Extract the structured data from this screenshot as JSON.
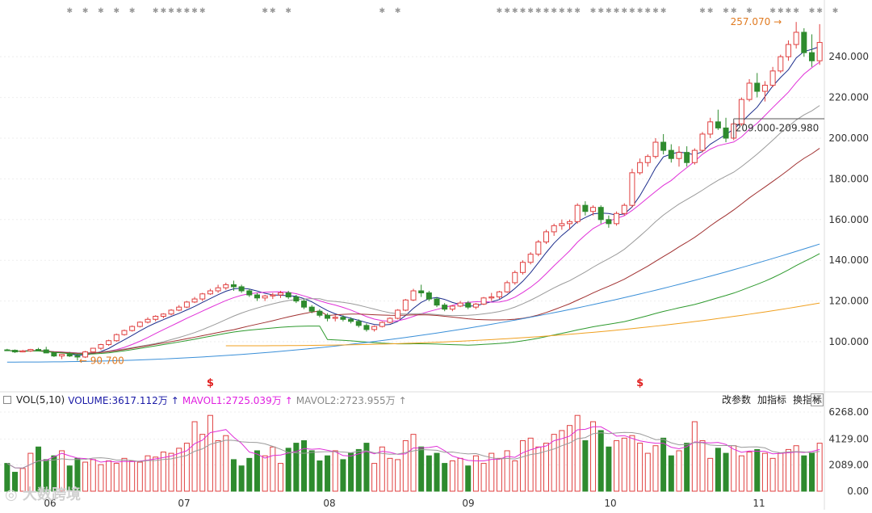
{
  "chart_data": {
    "type": "candlestick",
    "price_axis": {
      "ticks": [
        "240.000",
        "220.000",
        "200.000",
        "180.000",
        "160.000",
        "140.000",
        "120.000",
        "100.000"
      ]
    },
    "volume_axis": {
      "ticks": [
        "6268.00",
        "4129.00",
        "2089.00",
        "0.00"
      ]
    },
    "x_labels": [
      "06",
      "07",
      "08",
      "09",
      "10",
      "11"
    ],
    "annotations": {
      "high": "257.070",
      "low": "90.700",
      "range_box": "209.000-209.980",
      "dividend_marker": "$"
    },
    "volume_legend": {
      "indicator": "VOL(5,10)",
      "volume": "VOLUME:3617.112万",
      "mavol1": "MAVOL1:2725.039万",
      "mavol2": "MAVOL2:2723.955万"
    },
    "candles": [
      [
        96,
        96.5,
        95.5,
        95.8
      ],
      [
        95.8,
        96.2,
        94.5,
        95
      ],
      [
        95,
        96,
        94.8,
        95.5
      ],
      [
        95.5,
        96.5,
        95,
        96.2
      ],
      [
        96.2,
        97,
        95.5,
        96
      ],
      [
        96,
        97.5,
        95,
        94.5
      ],
      [
        94.5,
        95,
        92.5,
        93
      ],
      [
        93,
        94,
        91.5,
        93.8
      ],
      [
        93.8,
        95,
        92.5,
        93
      ],
      [
        93,
        94,
        90.7,
        92.5
      ],
      [
        92.5,
        95.5,
        92,
        95
      ],
      [
        95,
        97,
        94.5,
        96.8
      ],
      [
        96.8,
        99,
        96,
        98.6
      ],
      [
        98.6,
        101,
        98,
        100.5
      ],
      [
        100.5,
        104,
        100,
        103.5
      ],
      [
        103.5,
        106,
        103,
        105.5
      ],
      [
        105.5,
        108,
        105,
        107.5
      ],
      [
        107.5,
        110,
        107,
        109.6
      ],
      [
        109.6,
        112,
        109,
        111
      ],
      [
        111,
        113,
        110,
        112.5
      ],
      [
        112.5,
        114,
        111.5,
        113.6
      ],
      [
        113.6,
        116,
        113,
        115.5
      ],
      [
        115.5,
        118,
        115,
        117
      ],
      [
        117,
        120,
        116.5,
        119.5
      ],
      [
        119.5,
        122,
        119,
        121
      ],
      [
        121,
        124,
        120,
        123.5
      ],
      [
        123.5,
        126,
        123,
        125
      ],
      [
        125,
        128,
        124,
        126.5
      ],
      [
        126.5,
        129,
        125.5,
        128
      ],
      [
        128,
        130,
        125,
        127
      ],
      [
        127,
        128,
        124,
        125
      ],
      [
        125,
        126,
        122,
        123
      ],
      [
        123,
        124,
        120,
        121.5
      ],
      [
        121.5,
        123,
        120,
        122.5
      ],
      [
        122.5,
        124,
        121,
        123
      ],
      [
        123,
        125,
        121.5,
        124
      ],
      [
        124,
        125,
        121,
        122
      ],
      [
        122,
        123,
        119,
        120
      ],
      [
        120,
        121,
        116,
        117
      ],
      [
        117,
        118,
        114,
        115
      ],
      [
        115,
        116,
        112,
        113
      ],
      [
        113,
        114,
        110,
        111.5
      ],
      [
        111.5,
        113,
        110,
        112
      ],
      [
        112,
        113,
        110,
        111
      ],
      [
        111,
        112,
        109,
        110
      ],
      [
        110,
        111,
        107,
        108
      ],
      [
        108,
        109,
        105,
        106
      ],
      [
        106,
        108,
        105,
        107.5
      ],
      [
        107.5,
        110,
        107,
        109.5
      ],
      [
        109.5,
        112,
        109,
        111.5
      ],
      [
        111.5,
        116,
        111,
        115.5
      ],
      [
        115.5,
        121,
        115,
        120.5
      ],
      [
        120.5,
        126,
        120,
        125
      ],
      [
        125,
        128,
        122,
        124
      ],
      [
        124,
        125,
        120,
        121
      ],
      [
        121,
        122,
        117,
        118
      ],
      [
        118,
        119,
        115,
        116
      ],
      [
        116,
        118,
        115,
        117.5
      ],
      [
        117.5,
        120,
        117,
        119
      ],
      [
        119,
        120,
        116,
        117
      ],
      [
        117,
        119,
        116,
        118.5
      ],
      [
        118.5,
        122,
        118,
        121.5
      ],
      [
        121.5,
        124,
        120,
        122
      ],
      [
        122,
        125,
        121,
        124.5
      ],
      [
        124.5,
        130,
        124,
        129
      ],
      [
        129,
        135,
        128,
        134
      ],
      [
        134,
        140,
        133,
        139
      ],
      [
        139,
        144,
        138,
        143
      ],
      [
        143,
        150,
        142,
        149
      ],
      [
        149,
        155,
        148,
        154
      ],
      [
        154,
        158,
        152,
        157
      ],
      [
        157,
        160,
        155,
        158
      ],
      [
        158,
        160,
        155,
        159
      ],
      [
        159,
        168,
        158,
        167
      ],
      [
        167,
        169,
        162,
        164
      ],
      [
        164,
        167,
        162,
        166
      ],
      [
        166,
        167,
        158,
        160
      ],
      [
        160,
        162,
        156,
        158
      ],
      [
        158,
        164,
        157,
        163
      ],
      [
        163,
        168,
        162,
        167
      ],
      [
        167,
        185,
        166,
        183
      ],
      [
        183,
        190,
        182,
        188
      ],
      [
        188,
        192,
        186,
        191
      ],
      [
        191,
        200,
        190,
        198
      ],
      [
        198,
        202,
        192,
        194
      ],
      [
        194,
        197,
        188,
        190
      ],
      [
        190,
        196,
        186,
        193
      ],
      [
        193,
        196,
        186,
        188
      ],
      [
        188,
        195,
        187,
        194
      ],
      [
        194,
        203,
        193,
        202
      ],
      [
        202,
        210,
        200,
        208
      ],
      [
        208,
        214,
        204,
        205
      ],
      [
        205,
        210,
        198,
        200
      ],
      [
        200,
        208,
        199,
        207
      ],
      [
        207,
        220,
        206,
        219
      ],
      [
        219,
        229,
        218,
        227
      ],
      [
        227,
        232,
        220,
        223
      ],
      [
        223,
        228,
        218,
        226
      ],
      [
        226,
        235,
        225,
        233
      ],
      [
        233,
        241,
        232,
        240
      ],
      [
        240,
        248,
        238,
        246
      ],
      [
        246,
        257.07,
        244,
        252
      ],
      [
        252,
        254,
        240,
        242
      ],
      [
        242,
        251,
        235,
        238
      ],
      [
        238,
        256,
        236,
        247
      ]
    ],
    "volumes": [
      22,
      15,
      18,
      30,
      35,
      25,
      28,
      32,
      20,
      26,
      23,
      25,
      21,
      24,
      22,
      26,
      24,
      23,
      28,
      27,
      31,
      30,
      34,
      38,
      55,
      45,
      60,
      40,
      44,
      25,
      20,
      26,
      32,
      28,
      35,
      22,
      34,
      38,
      40,
      32,
      24,
      28,
      32,
      25,
      30,
      33,
      38,
      22,
      35,
      26,
      25,
      40,
      45,
      35,
      28,
      30,
      22,
      24,
      26,
      20,
      28,
      22,
      30,
      26,
      32,
      24,
      40,
      42,
      35,
      38,
      45,
      48,
      52,
      60,
      40,
      55,
      48,
      35,
      40,
      42,
      44,
      38,
      30,
      36,
      42,
      28,
      32,
      38,
      55,
      40,
      26,
      34,
      30,
      36,
      28,
      31,
      33,
      30,
      26,
      30,
      33,
      36,
      28,
      30,
      38
    ]
  }
}
